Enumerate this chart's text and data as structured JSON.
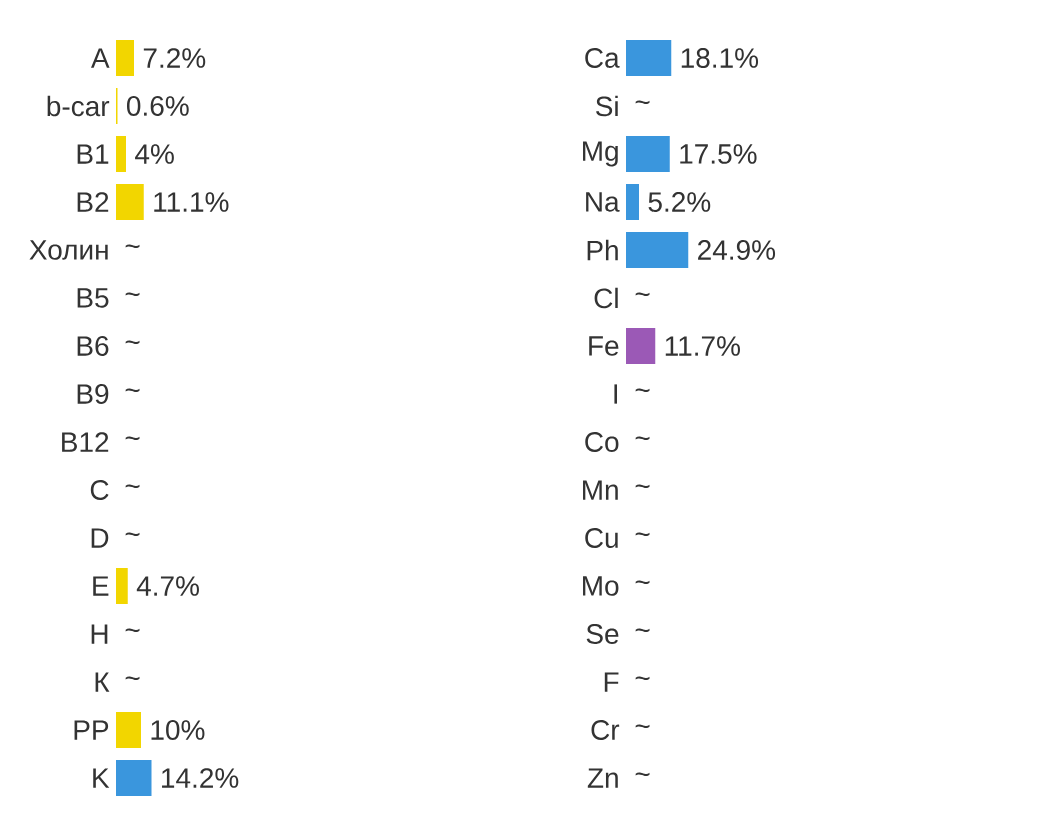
{
  "chart_data": [
    {
      "type": "bar",
      "orientation": "horizontal",
      "tick_labels": "y",
      "categories": [
        "A",
        "b-car",
        "B1",
        "B2",
        "Холин",
        "B5",
        "B6",
        "B9",
        "B12",
        "C",
        "D",
        "E",
        "H",
        "К",
        "PP",
        "K"
      ],
      "values": [
        7.2,
        0.6,
        4,
        11.1,
        null,
        null,
        null,
        null,
        null,
        null,
        null,
        4.7,
        null,
        null,
        10,
        14.2
      ],
      "colors": [
        "#f2d600",
        "#f2d600",
        "#f2d600",
        "#f2d600",
        null,
        null,
        null,
        null,
        null,
        null,
        null,
        "#f2d600",
        null,
        null,
        "#f2d600",
        "#3a96dd"
      ],
      "value_labels": [
        "7.2%",
        "0.6%",
        "4%",
        "11.1%",
        "~",
        "~",
        "~",
        "~",
        "~",
        "~",
        "~",
        "4.7%",
        "~",
        "~",
        "10%",
        "14.2%"
      ]
    },
    {
      "type": "bar",
      "orientation": "horizontal",
      "tick_labels": "y",
      "categories": [
        "Ca",
        "Si",
        "Mg",
        "Na",
        "Ph",
        "Cl",
        "Fe",
        "I",
        "Co",
        "Mn",
        "Cu",
        "Mo",
        "Se",
        "F",
        "Cr",
        "Zn"
      ],
      "values": [
        18.1,
        null,
        17.5,
        5.2,
        24.9,
        null,
        11.7,
        null,
        null,
        null,
        null,
        null,
        null,
        null,
        null,
        null
      ],
      "colors": [
        "#3a96dd",
        null,
        "#3a96dd",
        "#3a96dd",
        "#3a96dd",
        null,
        "#9b59b6",
        null,
        null,
        null,
        null,
        null,
        null,
        null,
        null,
        null
      ],
      "value_labels": [
        "18.1%",
        "~",
        "17.5%",
        "5.2%",
        "24.9%",
        "~",
        "11.7%",
        "~",
        "~",
        "~",
        "~",
        "~",
        "~",
        "~",
        "~",
        "~"
      ]
    }
  ]
}
